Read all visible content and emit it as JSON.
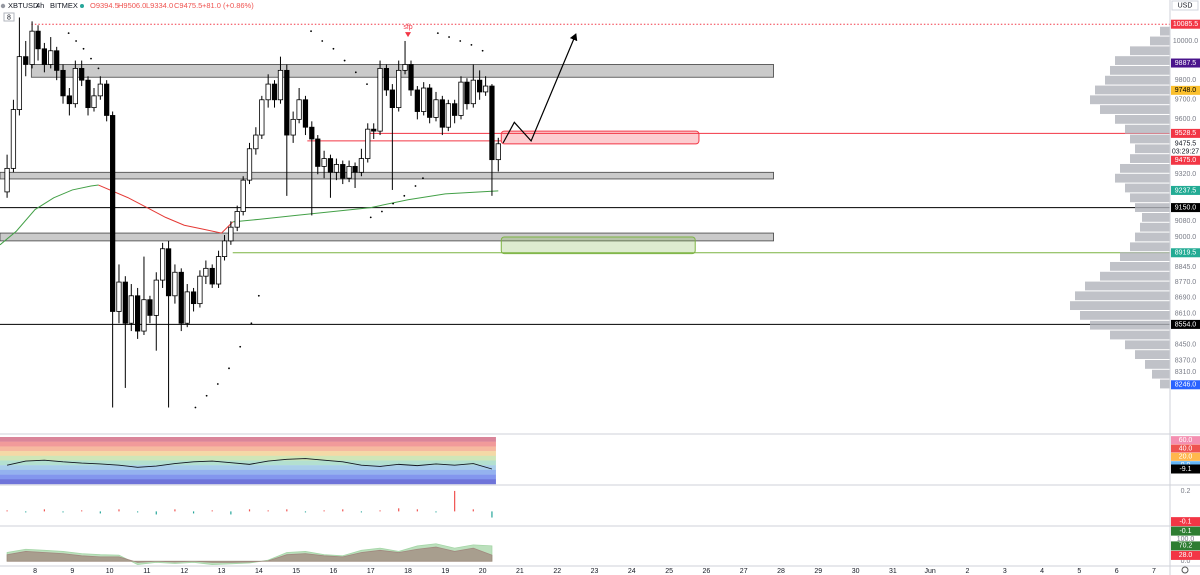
{
  "chart_data": [
    {
      "type": "candlestick",
      "symbol": "XBTUSD",
      "interval": "4h",
      "exchange": "BITMEX",
      "header_values": [
        "O9394.5",
        "H9506.0",
        "L9334.0",
        "C9475.5",
        "+81.0 (+0.86%)"
      ],
      "currency": "USD",
      "badge": "8",
      "xlim": [
        7.06,
        38.43
      ],
      "xticks": [
        8,
        9,
        10,
        11,
        12,
        13,
        14,
        15,
        16,
        17,
        18,
        19,
        20,
        21,
        22,
        23,
        24,
        25,
        26,
        27,
        28,
        29,
        30,
        31,
        {
          "value": 32,
          "label": "Jun"
        },
        {
          "value": 33,
          "label": "2"
        },
        {
          "value": 34,
          "label": "3"
        },
        {
          "value": 35,
          "label": "4"
        },
        {
          "value": 36,
          "label": "5"
        },
        {
          "value": 37,
          "label": "6"
        },
        {
          "value": 38,
          "label": "7"
        }
      ],
      "ylim": [
        8000,
        10209
      ],
      "yticks": [
        {
          "value": 10000,
          "label": "10000.0"
        },
        {
          "value": 9800,
          "label": "9800.0"
        },
        {
          "value": 9700,
          "label": "9700.0"
        },
        {
          "value": 9600,
          "label": "9600.0"
        },
        {
          "value": 9320,
          "label": "9320.0"
        },
        {
          "value": 9080,
          "label": "9080.0"
        },
        {
          "value": 9000,
          "label": "9000.0"
        },
        {
          "value": 8845,
          "label": "8845.0"
        },
        {
          "value": 8770,
          "label": "8770.0"
        },
        {
          "value": 8690,
          "label": "8690.0"
        },
        {
          "value": 8610,
          "label": "8610.0"
        },
        {
          "value": 8450,
          "label": "8450.0"
        },
        {
          "value": 8370,
          "label": "8370.0"
        },
        {
          "value": 8310,
          "label": "8310.0"
        }
      ],
      "x": [
        7.25,
        7.42,
        7.58,
        7.75,
        7.92,
        8.08,
        8.25,
        8.42,
        8.58,
        8.75,
        8.92,
        9.08,
        9.25,
        9.42,
        9.58,
        9.75,
        9.92,
        10.08,
        10.25,
        10.42,
        10.58,
        10.75,
        10.92,
        11.08,
        11.25,
        11.42,
        11.58,
        11.75,
        11.92,
        12.08,
        12.25,
        12.42,
        12.58,
        12.75,
        12.92,
        13.08,
        13.25,
        13.42,
        13.58,
        13.75,
        13.92,
        14.08,
        14.25,
        14.42,
        14.58,
        14.75,
        14.92,
        15.08,
        15.25,
        15.42,
        15.58,
        15.75,
        15.92,
        16.08,
        16.25,
        16.42,
        16.58,
        16.75,
        16.92,
        17.08,
        17.25,
        17.42,
        17.58,
        17.75,
        17.92,
        18.08,
        18.25,
        18.42,
        18.58,
        18.75,
        18.92,
        19.08,
        19.25,
        19.42,
        19.58,
        19.75,
        19.92,
        20.08,
        20.25,
        20.42
      ],
      "open": [
        9230,
        9350,
        9650,
        9920,
        9880,
        10050,
        9960,
        9880,
        9950,
        9850,
        9720,
        9680,
        9860,
        9800,
        9660,
        9720,
        9780,
        9620,
        8620,
        8770,
        8560,
        8700,
        8520,
        8680,
        8600,
        8780,
        8940,
        8700,
        8820,
        8560,
        8720,
        8660,
        8800,
        8840,
        8760,
        8900,
        8980,
        9050,
        9130,
        9290,
        9450,
        9520,
        9700,
        9780,
        9700,
        9850,
        9520,
        9600,
        9700,
        9560,
        9500,
        9360,
        9400,
        9330,
        9370,
        9300,
        9360,
        9330,
        9400,
        9550,
        9540,
        9860,
        9750,
        9660,
        9850,
        9880,
        9750,
        9640,
        9760,
        9610,
        9700,
        9560,
        9680,
        9620,
        9790,
        9680,
        9800,
        9740,
        9770,
        9394.5
      ],
      "high": [
        9420,
        9700,
        10120,
        10000,
        10100,
        10080,
        9990,
        10020,
        9970,
        9880,
        9760,
        9900,
        9900,
        9820,
        9760,
        9820,
        9800,
        9640,
        8860,
        8800,
        8760,
        8740,
        8900,
        8700,
        8820,
        8970,
        8980,
        8860,
        8840,
        8760,
        8740,
        8830,
        8880,
        8860,
        8930,
        9010,
        9080,
        9160,
        9310,
        9480,
        9560,
        9720,
        9830,
        9800,
        9920,
        9880,
        9640,
        9760,
        9720,
        9590,
        9520,
        9440,
        9420,
        9400,
        9390,
        9390,
        9380,
        9450,
        9580,
        9580,
        9900,
        9880,
        9780,
        9900,
        10000,
        9900,
        9770,
        9790,
        9780,
        9740,
        9720,
        9700,
        9700,
        9820,
        9810,
        9880,
        9850,
        9820,
        9780,
        9506
      ],
      "low": [
        9200,
        9330,
        9620,
        9820,
        9860,
        9900,
        9840,
        9860,
        9800,
        9680,
        9620,
        9660,
        9770,
        9620,
        9640,
        9700,
        9590,
        8130,
        8560,
        8230,
        8520,
        8480,
        8500,
        8560,
        8420,
        8740,
        8130,
        8660,
        8520,
        8540,
        8620,
        8640,
        8760,
        8740,
        8740,
        8880,
        8960,
        9030,
        9110,
        9270,
        9420,
        9500,
        9660,
        9660,
        9680,
        9210,
        9480,
        9580,
        9520,
        9110,
        9320,
        9300,
        9200,
        9290,
        9270,
        9280,
        9250,
        9310,
        9380,
        9500,
        9520,
        9720,
        9240,
        9640,
        9830,
        9720,
        9600,
        9620,
        9580,
        9590,
        9520,
        9540,
        9580,
        9600,
        9650,
        9660,
        9700,
        9720,
        9210,
        9334
      ],
      "close": [
        9350,
        9650,
        9920,
        9880,
        10050,
        9960,
        9880,
        9950,
        9850,
        9720,
        9680,
        9860,
        9800,
        9660,
        9720,
        9780,
        9620,
        8620,
        8770,
        8560,
        8700,
        8520,
        8680,
        8600,
        8780,
        8940,
        8700,
        8820,
        8560,
        8720,
        8660,
        8800,
        8840,
        8760,
        8900,
        8980,
        9050,
        9130,
        9290,
        9450,
        9520,
        9700,
        9780,
        9700,
        9850,
        9520,
        9600,
        9700,
        9560,
        9500,
        9360,
        9400,
        9330,
        9370,
        9300,
        9360,
        9330,
        9400,
        9550,
        9540,
        9860,
        9750,
        9660,
        9850,
        9880,
        9750,
        9640,
        9760,
        9610,
        9700,
        9560,
        9680,
        9620,
        9790,
        9680,
        9800,
        9740,
        9770,
        9394.5,
        9475.5
      ],
      "up_color": "#ffffff",
      "down_color": "#000000",
      "wick_color": "#000000",
      "ma": [
        {
          "color": "#43a047",
          "x": [
            7.06,
            7.5,
            8,
            8.5,
            9,
            9.5,
            9.7
          ],
          "values": [
            8960,
            9030,
            9140,
            9200,
            9240,
            9260,
            9265
          ]
        },
        {
          "color": "#e53935",
          "x": [
            9.7,
            10.5,
            11,
            11.5,
            12,
            12.5,
            13,
            13.3
          ],
          "values": [
            9265,
            9200,
            9150,
            9100,
            9060,
            9040,
            9020,
            9077
          ]
        },
        {
          "color": "#43a047",
          "x": [
            13.3,
            14,
            15,
            16,
            17,
            18,
            19,
            20.42
          ],
          "values": [
            9077,
            9090,
            9110,
            9130,
            9150,
            9190,
            9220,
            9235
          ]
        }
      ],
      "sar": {
        "color": "#000000",
        "x": [
          8.9,
          9.1,
          9.3,
          9.5,
          9.7,
          12.3,
          12.6,
          12.9,
          13.2,
          13.5,
          13.8,
          14.0,
          15.4,
          15.7,
          16.0,
          16.3,
          16.6,
          16.9,
          17.0,
          17.3,
          17.6,
          17.9,
          18.2,
          18.4,
          18.8,
          19.1,
          19.4,
          19.7,
          20.0
        ],
        "values": [
          10040,
          10000,
          9960,
          9910,
          9860,
          8130,
          8190,
          8250,
          8330,
          8440,
          8560,
          8700,
          10050,
          10000,
          9960,
          9900,
          9840,
          9780,
          9100,
          9130,
          9170,
          9210,
          9260,
          9300,
          10040,
          10020,
          10000,
          9980,
          9950
        ]
      },
      "volume_profile": {
        "color": "#b0b3ba",
        "levels": [
          8250,
          8300,
          8350,
          8400,
          8450,
          8500,
          8550,
          8600,
          8650,
          8700,
          8750,
          8800,
          8850,
          8900,
          8950,
          9000,
          9050,
          9100,
          9150,
          9200,
          9250,
          9300,
          9350,
          9400,
          9450,
          9500,
          9550,
          9600,
          9650,
          9700,
          9750,
          9800,
          9850,
          9900,
          9950,
          10000,
          10050
        ],
        "values": [
          10,
          18,
          25,
          35,
          45,
          60,
          80,
          90,
          100,
          95,
          85,
          70,
          60,
          50,
          40,
          35,
          30,
          28,
          35,
          40,
          45,
          55,
          50,
          40,
          35,
          40,
          45,
          55,
          70,
          80,
          75,
          65,
          60,
          55,
          40,
          20,
          10
        ]
      },
      "levels": [
        {
          "value": 10085.5,
          "color": "#f23645",
          "style": "dotted",
          "from": 7.9,
          "to": 38.43
        },
        {
          "value": 9528.5,
          "color": "#f23645",
          "style": "solid",
          "from": 16.9,
          "to": 38.43
        },
        {
          "value": 9490,
          "color": "#f23645",
          "style": "solid",
          "from": 15.3,
          "to": 20.5
        },
        {
          "value": 9150,
          "color": "#000000",
          "style": "solid",
          "from": 7.06,
          "to": 38.43
        },
        {
          "value": 8919.5,
          "color": "#7cb342",
          "style": "solid",
          "from": 13.3,
          "to": 38.43
        },
        {
          "value": 8554,
          "color": "#000000",
          "style": "solid",
          "from": 7.06,
          "to": 38.43
        }
      ],
      "zones": [
        {
          "top": 9880,
          "bottom": 9815,
          "from": 7.9,
          "to": 27.8
        },
        {
          "top": 9330,
          "bottom": 9296,
          "from": 7.06,
          "to": 27.8
        },
        {
          "top": 9020,
          "bottom": 8980,
          "from": 7.06,
          "to": 27.8
        }
      ],
      "boxes": [
        {
          "top": 9540,
          "bottom": 9475,
          "from": 20.5,
          "to": 25.8,
          "color": "#f23645"
        },
        {
          "top": 9000,
          "bottom": 8915,
          "from": 20.5,
          "to": 25.7,
          "color": "#7cb342"
        }
      ],
      "projection": {
        "x": [
          20.55,
          20.85,
          21.3,
          22.5
        ],
        "values": [
          9480,
          9585,
          9490,
          10035
        ]
      },
      "annotation": {
        "text": "sfp",
        "x": 18.0,
        "value": 10030,
        "color": "#f23645"
      },
      "price_tags": [
        {
          "value": 10085.5,
          "label": "10085.5",
          "color": "#f23645",
          "text_color": "#ffffff"
        },
        {
          "value": 9887.5,
          "label": "9887.5",
          "color": "#4a148c",
          "text_color": "#ffffff"
        },
        {
          "value": 9748,
          "label": "9748.0",
          "color": "#fbc02d",
          "text_color": "#000000"
        },
        {
          "value": 9528.5,
          "label": "9528.5",
          "color": "#f23645",
          "text_color": "#ffffff"
        },
        {
          "value": 9475.5,
          "label": "9475.5",
          "color": "#ffffff",
          "text_color": "#131722"
        },
        {
          "value": 9475,
          "label": "9475.0",
          "color": "#f23645",
          "text_color": "#ffffff"
        },
        {
          "value": 9237.5,
          "label": "9237.5",
          "color": "#22ab94",
          "text_color": "#ffffff"
        },
        {
          "value": 9150,
          "label": "9150.0",
          "color": "#000000",
          "text_color": "#ffffff"
        },
        {
          "value": 8919.5,
          "label": "8919.5",
          "color": "#22ab94",
          "text_color": "#ffffff"
        },
        {
          "value": 8554,
          "label": "8554.0",
          "color": "#000000",
          "text_color": "#ffffff"
        },
        {
          "value": 8246,
          "label": "8246.0",
          "color": "#2962ff",
          "text_color": "#ffffff"
        }
      ],
      "countdown": "03:29:27"
    },
    {
      "type": "line",
      "x": [
        7.25,
        7.75,
        8.25,
        8.75,
        9.25,
        9.75,
        10.25,
        10.75,
        11.25,
        11.75,
        12.25,
        12.75,
        13.25,
        13.75,
        14.25,
        14.75,
        15.25,
        15.75,
        16.25,
        16.75,
        17.25,
        17.75,
        18.25,
        18.75,
        19.25,
        19.75,
        20.25
      ],
      "values": [
        0,
        10,
        12,
        8,
        5,
        3,
        0,
        -5,
        -2,
        4,
        8,
        10,
        6,
        2,
        10,
        14,
        16,
        12,
        8,
        0,
        -3,
        2,
        -1,
        3,
        0,
        4,
        -9.1
      ],
      "color": "#131722",
      "ylim": [
        -45,
        67.5
      ],
      "yticks": [
        {
          "value": 60,
          "label": "60.0"
        },
        {
          "value": 40,
          "label": "40.0"
        },
        {
          "value": 20,
          "label": "20.0"
        },
        {
          "value": 0,
          "label": "0.0"
        }
      ],
      "tick_colors": [
        "#f48fb1",
        "#ef5350",
        "#ffb74d",
        "#64b5f6"
      ],
      "value_tags": [
        {
          "value": -9.1,
          "label": "-9.1",
          "color": "#000000",
          "text_color": "#ffffff"
        }
      ]
    },
    {
      "type": "bar",
      "x": [
        7.25,
        7.75,
        8.25,
        8.75,
        9.25,
        9.75,
        10.25,
        10.75,
        11.25,
        11.75,
        12.25,
        12.75,
        13.25,
        13.75,
        14.25,
        14.75,
        15.25,
        15.75,
        16.25,
        16.75,
        17.25,
        17.75,
        18.25,
        18.75,
        19.25,
        19.75,
        20.25
      ],
      "values": [
        0.01,
        -0.01,
        0.02,
        -0.01,
        0.01,
        -0.02,
        0.02,
        -0.01,
        -0.03,
        0.02,
        -0.02,
        0.01,
        -0.03,
        0.02,
        0.01,
        0.02,
        -0.01,
        0.01,
        0.02,
        -0.01,
        0.01,
        0.03,
        0.02,
        -0.01,
        0.2,
        0.02,
        -0.06
      ],
      "up_color": "#ef5350",
      "down_color": "#26a69a",
      "ylim": [
        -0.133,
        0.248
      ],
      "yticks": [
        0.2
      ],
      "value_tags": [
        {
          "value": -0.1,
          "label": "-0.1",
          "color": "#f23645",
          "text_color": "#ffffff"
        },
        {
          "value": -0.1,
          "label": "-0.1",
          "color": "#2e7d32",
          "text_color": "#ffffff"
        }
      ]
    },
    {
      "type": "area",
      "x": [
        7.25,
        7.75,
        8.25,
        8.75,
        9.25,
        9.75,
        10.25,
        10.75,
        11.25,
        11.75,
        12.25,
        12.75,
        13.25,
        13.75,
        14.25,
        14.75,
        15.25,
        15.75,
        16.25,
        16.75,
        17.25,
        17.75,
        18.25,
        18.75,
        19.25,
        19.75,
        20.25
      ],
      "series": [
        {
          "color": "#a5d6a7",
          "values": [
            40,
            55,
            50,
            45,
            35,
            30,
            28,
            -15,
            -5,
            -10,
            -5,
            -15,
            -12,
            -8,
            5,
            40,
            45,
            30,
            25,
            50,
            60,
            45,
            70,
            80,
            60,
            75,
            70.2
          ]
        },
        {
          "color": "#a1887f",
          "values": [
            30,
            45,
            40,
            35,
            25,
            20,
            20,
            -5,
            0,
            -3,
            0,
            -5,
            -5,
            -3,
            2,
            30,
            35,
            25,
            20,
            40,
            50,
            40,
            55,
            65,
            45,
            60,
            28
          ]
        }
      ],
      "ylim": [
        -17,
        156.5
      ],
      "yticks": [
        {
          "value": 100,
          "label": "100.0"
        },
        {
          "value": 0,
          "label": "0.0"
        }
      ],
      "value_tags": [
        {
          "value": 70.2,
          "label": "70.2",
          "color": "#2e7d32",
          "text_color": "#ffffff"
        },
        {
          "value": 28,
          "label": "28.0",
          "color": "#f23645",
          "text_color": "#ffffff"
        }
      ]
    }
  ]
}
